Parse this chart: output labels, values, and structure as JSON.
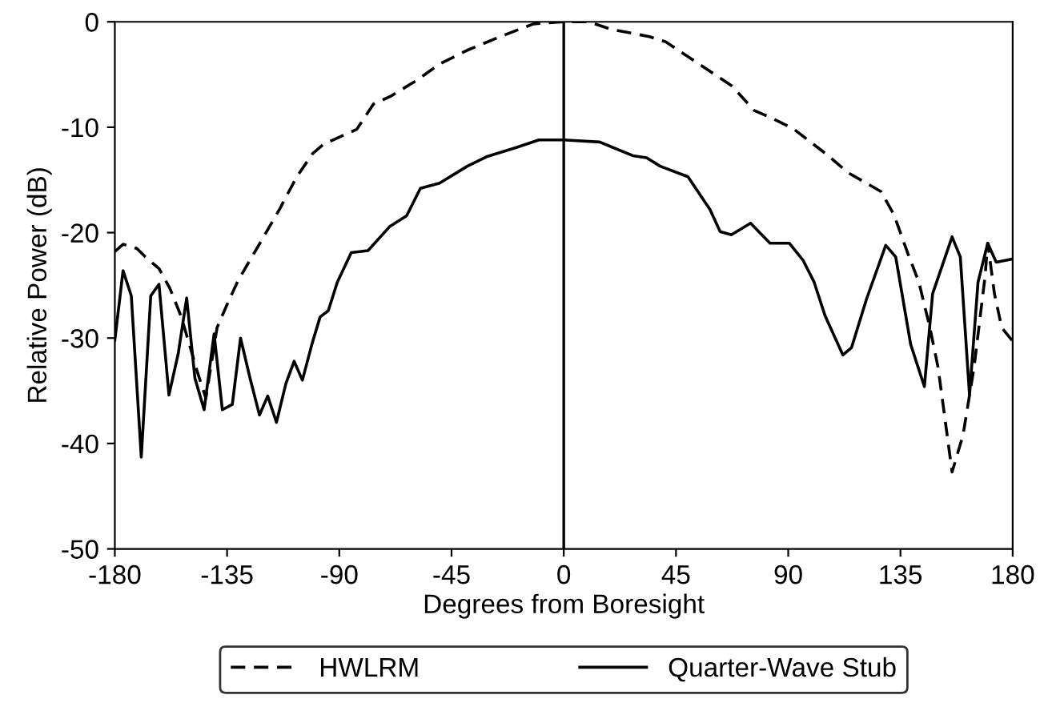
{
  "chart_data": {
    "type": "line",
    "xlabel": "Degrees from Boresight",
    "ylabel": "Relative Power (dB)",
    "xlim": [
      -180,
      180
    ],
    "xticks": [
      -180,
      -135,
      -90,
      -45,
      0,
      45,
      90,
      135,
      180
    ],
    "ylim": [
      -50,
      0
    ],
    "yticks": [
      -50,
      -40,
      -30,
      -20,
      -10,
      0
    ],
    "grid": false,
    "legend": "bottom",
    "marker": "none",
    "ref_lines": [
      {
        "axis": "x",
        "value": 0,
        "color": "#000000",
        "line_style": "solid"
      }
    ],
    "series": [
      {
        "name": "HWLRM",
        "color": "#000000",
        "line_style": "dashed",
        "x": [
          -180,
          -176.7,
          -171.2,
          -167.8,
          -162.3,
          -157.9,
          -153.5,
          -150.1,
          -146.8,
          -143.5,
          -139,
          -134.6,
          -130.5,
          -122.8,
          -114,
          -107.3,
          -100.7,
          -96.2,
          -83,
          -76.3,
          -69.7,
          -58.6,
          -49.8,
          -38.7,
          -25.4,
          -12.2,
          0,
          10,
          18.8,
          34.3,
          40.9,
          54.2,
          67.5,
          76.3,
          83,
          91.8,
          105,
          113.9,
          127.2,
          132.4,
          138,
          142.4,
          146.8,
          150.1,
          155.7,
          160.1,
          164.5,
          168.9,
          170,
          172.7,
          175.6,
          180
        ],
        "values": [
          -21.8,
          -21.1,
          -21.5,
          -22.3,
          -23.4,
          -25.3,
          -27.9,
          -30.6,
          -33.3,
          -35.7,
          -29,
          -26.6,
          -24.5,
          -21.4,
          -17.8,
          -14.8,
          -12.5,
          -11.6,
          -10.2,
          -7.8,
          -7.1,
          -5.5,
          -4,
          -2.7,
          -1.4,
          -0.2,
          0,
          0,
          -0.7,
          -1.4,
          -1.9,
          -4,
          -6.1,
          -8.4,
          -9.1,
          -10.1,
          -12.5,
          -14.3,
          -16.1,
          -18.3,
          -22,
          -24.7,
          -29,
          -32.8,
          -42.7,
          -39.2,
          -32.8,
          -24.2,
          -21,
          -25.8,
          -29,
          -30.3
        ]
      },
      {
        "name": "Quarter-Wave Stub",
        "color": "#000000",
        "line_style": "solid",
        "x": [
          -180,
          -176.7,
          -173.4,
          -169.4,
          -165.6,
          -162.3,
          -158.3,
          -154.6,
          -151.2,
          -147.9,
          -144.2,
          -140.2,
          -136.9,
          -132.9,
          -129.6,
          -125.8,
          -122,
          -118.7,
          -115.2,
          -111.4,
          -108.1,
          -104.8,
          -101,
          -97.7,
          -94.4,
          -90.8,
          -85.2,
          -78.5,
          -69.7,
          -63,
          -57.5,
          -49.8,
          -38.7,
          -31,
          -18.8,
          -10,
          0,
          14.4,
          27.7,
          33.2,
          38.7,
          49.8,
          58.6,
          62.7,
          67.2,
          74.9,
          82.7,
          90.4,
          95.9,
          100.4,
          104.8,
          111.9,
          115.4,
          121.4,
          129.1,
          133.1,
          139.1,
          144.6,
          147.9,
          155.7,
          159,
          162.7,
          166.1,
          170,
          173.4,
          180
        ],
        "values": [
          -30.2,
          -23.6,
          -26,
          -41.3,
          -26,
          -24.9,
          -35.4,
          -31.5,
          -26.2,
          -33.8,
          -36.8,
          -29.6,
          -36.8,
          -36.3,
          -30,
          -33.8,
          -37.3,
          -35.5,
          -38,
          -34.3,
          -32.2,
          -34,
          -30.6,
          -28,
          -27.4,
          -24.7,
          -21.9,
          -21.7,
          -19.4,
          -18.4,
          -15.8,
          -15.3,
          -13.7,
          -12.8,
          -11.9,
          -11.2,
          -11.2,
          -11.4,
          -12.7,
          -12.9,
          -13.7,
          -14.7,
          -17.8,
          -19.9,
          -20.2,
          -19.1,
          -21,
          -21,
          -22.6,
          -24.7,
          -27.9,
          -31.6,
          -30.9,
          -26.3,
          -21.2,
          -22.3,
          -30.6,
          -34.6,
          -25.8,
          -20.4,
          -22.3,
          -35.4,
          -24.7,
          -21,
          -22.8,
          -22.5
        ]
      }
    ]
  }
}
